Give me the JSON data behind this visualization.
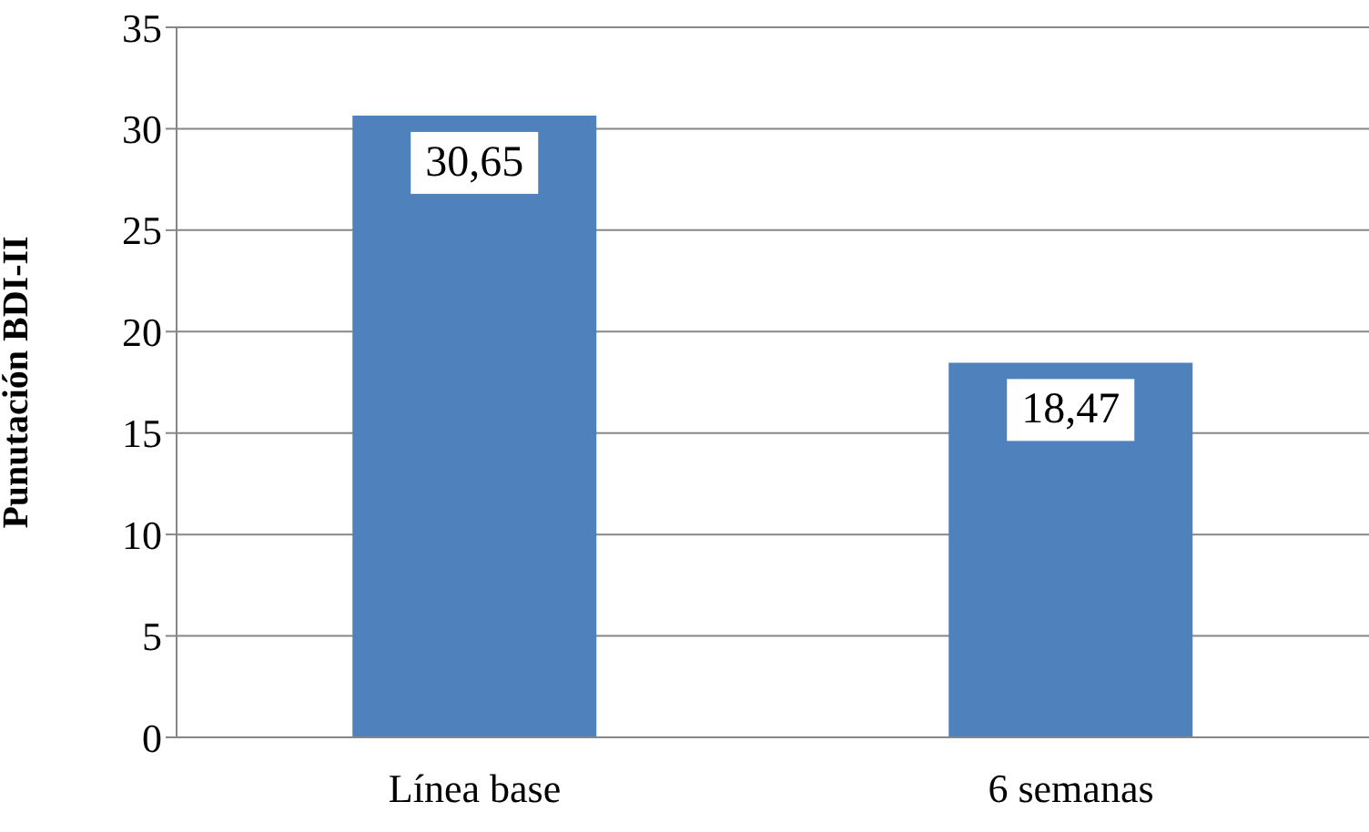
{
  "chart_data": {
    "type": "bar",
    "ylabel": "Punutación BDI-II",
    "categories": [
      "Línea base",
      "6 semanas"
    ],
    "values": [
      30.65,
      18.47
    ],
    "value_labels": [
      "30,65",
      "18,47"
    ],
    "color": "#4f81bd",
    "ylim": [
      0,
      35
    ],
    "yticks": [
      0,
      5,
      10,
      15,
      20,
      25,
      30,
      35
    ],
    "grid": "y"
  }
}
